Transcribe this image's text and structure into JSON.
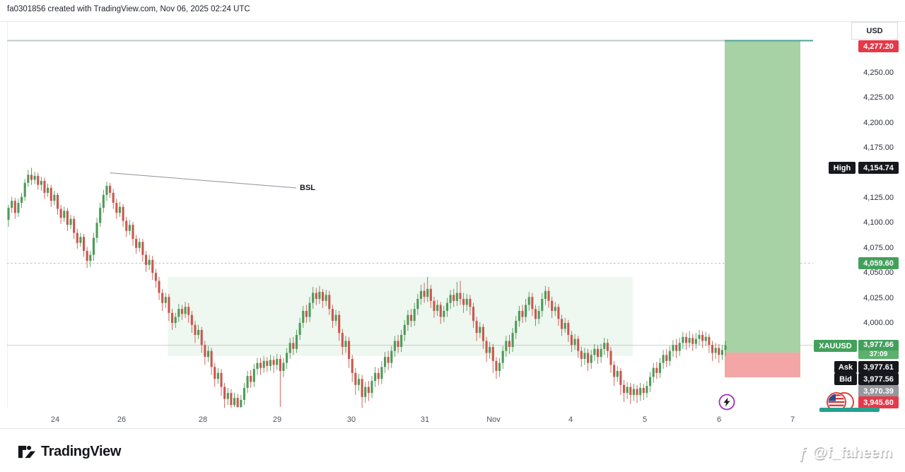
{
  "header": {
    "attribution": "fa0301856 created with TradingView.com, Nov 06, 2025 02:24 UTC"
  },
  "price_axis": {
    "currency_label": "USD",
    "ticks": [
      {
        "label": "4,250.00",
        "price": 4250
      },
      {
        "label": "4,225.00",
        "price": 4225
      },
      {
        "label": "4,200.00",
        "price": 4200
      },
      {
        "label": "4,175.00",
        "price": 4175
      },
      {
        "label": "4,125.00",
        "price": 4125
      },
      {
        "label": "4,100.00",
        "price": 4100
      },
      {
        "label": "4,075.00",
        "price": 4075
      },
      {
        "label": "4,050.00",
        "price": 4050
      },
      {
        "label": "4,025.00",
        "price": 4025
      },
      {
        "label": "4,000.00",
        "price": 4000
      }
    ],
    "badges": {
      "target": {
        "value": "4,277.20",
        "price": 4277.2,
        "color": "#e5394a"
      },
      "high": {
        "label": "High",
        "value": "4,154.74",
        "price": 4154.74,
        "color": "#16181d"
      },
      "level": {
        "value": "4,059.60",
        "price": 4059.6,
        "color": "#43a05c"
      },
      "symbol": {
        "label": "XAUUSD",
        "value": "3,977.66",
        "countdown": "37:09",
        "price": 3977.66,
        "color": "#43a05c"
      },
      "ask": {
        "label": "Ask",
        "value": "3,977.61",
        "color": "#16181d"
      },
      "bid": {
        "label": "Bid",
        "value": "3,977.56",
        "color": "#16181d"
      },
      "entry": {
        "value": "3,970.39",
        "price": 3970.39,
        "color": "#96989f"
      },
      "stop": {
        "value": "3,945.60",
        "price": 3945.6,
        "color": "#e5394a"
      }
    }
  },
  "time_axis": {
    "labels": [
      "24",
      "26",
      "28",
      "29",
      "30",
      "31",
      "Nov",
      "4",
      "5",
      "6",
      "7"
    ]
  },
  "annotations": {
    "bsl_label": "BSL"
  },
  "icons": {
    "lightning": "lightning-bolt",
    "flag": "us-flag-event"
  },
  "brand": {
    "logo_text": "TradingView"
  },
  "watermark": {
    "icon": "ƒ",
    "handle": "@f_faheem"
  },
  "chart_data": {
    "type": "candlestick",
    "symbol": "XAUUSD",
    "currency": "USD",
    "timeframe_hint": "hourly, Oct 24 - Nov 7",
    "time_labels": [
      "24",
      "26",
      "28",
      "29",
      "30",
      "31",
      "Nov",
      "4",
      "5",
      "6",
      "7"
    ],
    "y_ticks": [
      4250,
      4225,
      4200,
      4175,
      4125,
      4100,
      4075,
      4050,
      4025,
      4000
    ],
    "visible_price_range": [
      3913,
      4283
    ],
    "current_price": 3977.66,
    "countdown": "37:09",
    "ask": 3977.61,
    "bid": 3977.56,
    "day_high": 4154.74,
    "level_line_price": 4059.6,
    "top_line_price": 4282.5,
    "long_position": {
      "entry": 3970.39,
      "target": 4277.2,
      "stop": 3945.6
    },
    "zone": {
      "price_top": 4046,
      "price_bottom": 3967,
      "candle_from": 49,
      "candle_to": 191
    },
    "bsl_line": {
      "label": "BSL",
      "candle_from": 31,
      "price_from": 4138,
      "price_to": 4135
    },
    "candles": [
      [
        4103,
        4115,
        4096,
        4118
      ],
      [
        4115,
        4122,
        4110,
        4126
      ],
      [
        4122,
        4110,
        4104,
        4125
      ],
      [
        4110,
        4120,
        4106,
        4124
      ],
      [
        4120,
        4126,
        4115,
        4130
      ],
      [
        4126,
        4140,
        4122,
        4144
      ],
      [
        4140,
        4148,
        4136,
        4153
      ],
      [
        4148,
        4143,
        4138,
        4155
      ],
      [
        4143,
        4147,
        4139,
        4151
      ],
      [
        4147,
        4138,
        4133,
        4150
      ],
      [
        4138,
        4142,
        4132,
        4146
      ],
      [
        4142,
        4130,
        4124,
        4145
      ],
      [
        4130,
        4135,
        4126,
        4139
      ],
      [
        4135,
        4122,
        4116,
        4138
      ],
      [
        4122,
        4128,
        4118,
        4132
      ],
      [
        4128,
        4114,
        4108,
        4130
      ],
      [
        4114,
        4105,
        4099,
        4118
      ],
      [
        4105,
        4112,
        4101,
        4116
      ],
      [
        4112,
        4098,
        4092,
        4115
      ],
      [
        4098,
        4104,
        4094,
        4108
      ],
      [
        4104,
        4090,
        4084,
        4107
      ],
      [
        4090,
        4080,
        4074,
        4094
      ],
      [
        4080,
        4086,
        4076,
        4090
      ],
      [
        4086,
        4072,
        4066,
        4089
      ],
      [
        4072,
        4062,
        4055,
        4076
      ],
      [
        4062,
        4068,
        4056,
        4072
      ],
      [
        4068,
        4085,
        4062,
        4090
      ],
      [
        4085,
        4100,
        4080,
        4105
      ],
      [
        4100,
        4115,
        4096,
        4120
      ],
      [
        4115,
        4128,
        4110,
        4133
      ],
      [
        4128,
        4137,
        4122,
        4141
      ],
      [
        4137,
        4130,
        4125,
        4140
      ],
      [
        4130,
        4120,
        4114,
        4134
      ],
      [
        4120,
        4110,
        4104,
        4124
      ],
      [
        4110,
        4116,
        4106,
        4121
      ],
      [
        4116,
        4102,
        4096,
        4119
      ],
      [
        4102,
        4092,
        4086,
        4106
      ],
      [
        4092,
        4098,
        4088,
        4103
      ],
      [
        4098,
        4084,
        4077,
        4101
      ],
      [
        4084,
        4075,
        4069,
        4088
      ],
      [
        4075,
        4081,
        4071,
        4085
      ],
      [
        4081,
        4068,
        4061,
        4084
      ],
      [
        4068,
        4058,
        4051,
        4072
      ],
      [
        4058,
        4063,
        4053,
        4068
      ],
      [
        4063,
        4050,
        4043,
        4067
      ],
      [
        4050,
        4042,
        4035,
        4054
      ],
      [
        4042,
        4030,
        4023,
        4046
      ],
      [
        4030,
        4020,
        4012,
        4034
      ],
      [
        4020,
        4026,
        4015,
        4030
      ],
      [
        4026,
        4010,
        4002,
        4029
      ],
      [
        4010,
        4000,
        3993,
        4014
      ],
      [
        4000,
        4006,
        3995,
        4010
      ],
      [
        4006,
        4014,
        4001,
        4019
      ],
      [
        4014,
        4009,
        4003,
        4018
      ],
      [
        4009,
        4016,
        4005,
        4021
      ],
      [
        4016,
        4008,
        4000,
        4020
      ],
      [
        4008,
        3998,
        3990,
        4012
      ],
      [
        3998,
        3988,
        3980,
        4002
      ],
      [
        3988,
        3993,
        3984,
        3998
      ],
      [
        3993,
        3978,
        3970,
        3996
      ],
      [
        3978,
        3966,
        3958,
        3982
      ],
      [
        3966,
        3972,
        3961,
        3977
      ],
      [
        3972,
        3956,
        3948,
        3975
      ],
      [
        3956,
        3944,
        3936,
        3960
      ],
      [
        3944,
        3950,
        3939,
        3955
      ],
      [
        3950,
        3936,
        3927,
        3954
      ],
      [
        3936,
        3924,
        3915,
        3940
      ],
      [
        3924,
        3930,
        3918,
        3935
      ],
      [
        3930,
        3918,
        3915,
        3934
      ],
      [
        3918,
        3925,
        3916,
        3930
      ],
      [
        3925,
        3916,
        3915,
        3929
      ],
      [
        3916,
        3923,
        3915,
        3928
      ],
      [
        3923,
        3935,
        3918,
        3940
      ],
      [
        3935,
        3947,
        3930,
        3952
      ],
      [
        3947,
        3941,
        3935,
        3953
      ],
      [
        3941,
        3954,
        3936,
        3959
      ],
      [
        3954,
        3960,
        3948,
        3965
      ],
      [
        3960,
        3955,
        3948,
        3965
      ],
      [
        3955,
        3962,
        3950,
        3967
      ],
      [
        3962,
        3957,
        3951,
        3966
      ],
      [
        3957,
        3963,
        3952,
        3968
      ],
      [
        3963,
        3958,
        3950,
        3967
      ],
      [
        3958,
        3964,
        3953,
        3969
      ],
      [
        3964,
        3952,
        3916,
        3968
      ],
      [
        3952,
        3960,
        3946,
        3965
      ],
      [
        3960,
        3970,
        3954,
        3975
      ],
      [
        3970,
        3980,
        3964,
        3985
      ],
      [
        3980,
        3974,
        3968,
        3986
      ],
      [
        3974,
        3988,
        3970,
        3993
      ],
      [
        3988,
        4000,
        3983,
        4005
      ],
      [
        4000,
        4012,
        3995,
        4017
      ],
      [
        4012,
        4006,
        4000,
        4018
      ],
      [
        4006,
        4020,
        4001,
        4026
      ],
      [
        4020,
        4030,
        4014,
        4036
      ],
      [
        4030,
        4024,
        4018,
        4035
      ],
      [
        4024,
        4031,
        4019,
        4037
      ],
      [
        4031,
        4022,
        4015,
        4034
      ],
      [
        4022,
        4028,
        4017,
        4033
      ],
      [
        4028,
        4014,
        4008,
        4032
      ],
      [
        4014,
        4002,
        3995,
        4018
      ],
      [
        4002,
        4008,
        3997,
        4013
      ],
      [
        4008,
        3990,
        3982,
        4012
      ],
      [
        3990,
        3976,
        3968,
        3994
      ],
      [
        3976,
        3982,
        3970,
        3987
      ],
      [
        3982,
        3964,
        3955,
        3986
      ],
      [
        3964,
        3950,
        3941,
        3968
      ],
      [
        3950,
        3938,
        3928,
        3955
      ],
      [
        3938,
        3944,
        3932,
        3949
      ],
      [
        3944,
        3926,
        3915,
        3948
      ],
      [
        3926,
        3936,
        3920,
        3941
      ],
      [
        3936,
        3930,
        3922,
        3942
      ],
      [
        3930,
        3942,
        3925,
        3947
      ],
      [
        3942,
        3950,
        3936,
        3956
      ],
      [
        3950,
        3944,
        3938,
        3955
      ],
      [
        3944,
        3956,
        3939,
        3962
      ],
      [
        3956,
        3966,
        3950,
        3971
      ],
      [
        3966,
        3960,
        3953,
        3972
      ],
      [
        3960,
        3972,
        3955,
        3977
      ],
      [
        3972,
        3982,
        3966,
        3987
      ],
      [
        3982,
        3976,
        3970,
        3988
      ],
      [
        3976,
        3988,
        3971,
        3993
      ],
      [
        3988,
        3998,
        3982,
        4003
      ],
      [
        3998,
        4008,
        3992,
        4013
      ],
      [
        4008,
        4002,
        3996,
        4014
      ],
      [
        4002,
        4014,
        3997,
        4020
      ],
      [
        4014,
        4024,
        4008,
        4029
      ],
      [
        4024,
        4032,
        4018,
        4038
      ],
      [
        4032,
        4026,
        4020,
        4040
      ],
      [
        4026,
        4034,
        4021,
        4046
      ],
      [
        4034,
        4022,
        4015,
        4038
      ],
      [
        4022,
        4012,
        4005,
        4026
      ],
      [
        4012,
        4018,
        4007,
        4023
      ],
      [
        4018,
        4006,
        3999,
        4021
      ],
      [
        4006,
        4012,
        4001,
        4017
      ],
      [
        4012,
        4020,
        4006,
        4025
      ],
      [
        4020,
        4028,
        4014,
        4033
      ],
      [
        4028,
        4022,
        4016,
        4034
      ],
      [
        4022,
        4030,
        4017,
        4041
      ],
      [
        4030,
        4024,
        4018,
        4042
      ],
      [
        4024,
        4018,
        4010,
        4030
      ],
      [
        4018,
        4024,
        4012,
        4029
      ],
      [
        4024,
        4016,
        4008,
        4028
      ],
      [
        4016,
        4002,
        3995,
        4020
      ],
      [
        4002,
        3990,
        3982,
        4006
      ],
      [
        3990,
        3996,
        3985,
        4001
      ],
      [
        3996,
        3982,
        3974,
        3999
      ],
      [
        3982,
        3970,
        3961,
        3986
      ],
      [
        3970,
        3976,
        3964,
        3981
      ],
      [
        3976,
        3962,
        3950,
        3979
      ],
      [
        3962,
        3952,
        3944,
        3966
      ],
      [
        3952,
        3960,
        3946,
        3965
      ],
      [
        3960,
        3972,
        3954,
        3977
      ],
      [
        3972,
        3982,
        3966,
        3987
      ],
      [
        3982,
        3976,
        3969,
        3988
      ],
      [
        3976,
        3990,
        3971,
        3995
      ],
      [
        3990,
        4002,
        3984,
        4007
      ],
      [
        4002,
        4012,
        3996,
        4017
      ],
      [
        4012,
        4006,
        4000,
        4018
      ],
      [
        4006,
        4018,
        4001,
        4024
      ],
      [
        4018,
        4026,
        4012,
        4031
      ],
      [
        4026,
        4014,
        4007,
        4030
      ],
      [
        4014,
        4004,
        3997,
        4018
      ],
      [
        4004,
        4012,
        3999,
        4017
      ],
      [
        4012,
        4024,
        4006,
        4030
      ],
      [
        4024,
        4032,
        4018,
        4037
      ],
      [
        4032,
        4022,
        4015,
        4036
      ],
      [
        4022,
        4012,
        4005,
        4026
      ],
      [
        4012,
        4016,
        4007,
        4021
      ],
      [
        4016,
        4004,
        3997,
        4019
      ],
      [
        4004,
        3994,
        3987,
        4008
      ],
      [
        3994,
        4000,
        3990,
        4005
      ],
      [
        4000,
        3988,
        3981,
        4003
      ],
      [
        3988,
        3978,
        3971,
        3992
      ],
      [
        3978,
        3984,
        3973,
        3989
      ],
      [
        3984,
        3972,
        3965,
        3987
      ],
      [
        3972,
        3964,
        3956,
        3976
      ],
      [
        3964,
        3970,
        3958,
        3975
      ],
      [
        3970,
        3960,
        3952,
        3974
      ],
      [
        3960,
        3968,
        3954,
        3973
      ],
      [
        3968,
        3974,
        3962,
        3979
      ],
      [
        3974,
        3966,
        3959,
        3978
      ],
      [
        3966,
        3974,
        3960,
        3979
      ],
      [
        3974,
        3980,
        3968,
        3985
      ],
      [
        3980,
        3972,
        3965,
        3984
      ],
      [
        3972,
        3958,
        3950,
        3976
      ],
      [
        3958,
        3946,
        3937,
        3962
      ],
      [
        3946,
        3952,
        3941,
        3957
      ],
      [
        3952,
        3938,
        3928,
        3955
      ],
      [
        3938,
        3930,
        3921,
        3943
      ],
      [
        3930,
        3936,
        3924,
        3941
      ],
      [
        3936,
        3928,
        3919,
        3940
      ],
      [
        3928,
        3934,
        3922,
        3939
      ],
      [
        3934,
        3928,
        3920,
        3938
      ],
      [
        3928,
        3935,
        3922,
        3940
      ],
      [
        3935,
        3930,
        3923,
        3939
      ],
      [
        3930,
        3937,
        3925,
        3942
      ],
      [
        3937,
        3946,
        3931,
        3951
      ],
      [
        3946,
        3955,
        3940,
        3960
      ],
      [
        3955,
        3950,
        3944,
        3961
      ],
      [
        3950,
        3960,
        3945,
        3965
      ],
      [
        3960,
        3968,
        3954,
        3973
      ],
      [
        3968,
        3962,
        3956,
        3974
      ],
      [
        3962,
        3972,
        3957,
        3977
      ],
      [
        3972,
        3978,
        3966,
        3983
      ],
      [
        3978,
        3972,
        3965,
        3984
      ],
      [
        3972,
        3980,
        3967,
        3985
      ],
      [
        3980,
        3986,
        3974,
        3991
      ],
      [
        3986,
        3980,
        3973,
        3990
      ],
      [
        3980,
        3985,
        3975,
        3992
      ],
      [
        3985,
        3979,
        3972,
        3989
      ],
      [
        3979,
        3984,
        3974,
        3990
      ],
      [
        3984,
        3988,
        3978,
        3993
      ],
      [
        3988,
        3982,
        3975,
        3992
      ],
      [
        3982,
        3986,
        3977,
        3991
      ],
      [
        3986,
        3978,
        3970,
        3989
      ],
      [
        3978,
        3970,
        3962,
        3982
      ],
      [
        3970,
        3975,
        3964,
        3980
      ],
      [
        3975,
        3968,
        3960,
        3979
      ],
      [
        3968,
        3973,
        3963,
        3978
      ],
      [
        3973,
        3977.7,
        3967,
        3982
      ]
    ],
    "colors": {
      "up": "#4e9a58",
      "down": "#cc564d",
      "profit_box": "#a7d2a5",
      "loss_box": "#f4a6a6",
      "zone": "rgba(120,190,140,0.13)"
    }
  }
}
